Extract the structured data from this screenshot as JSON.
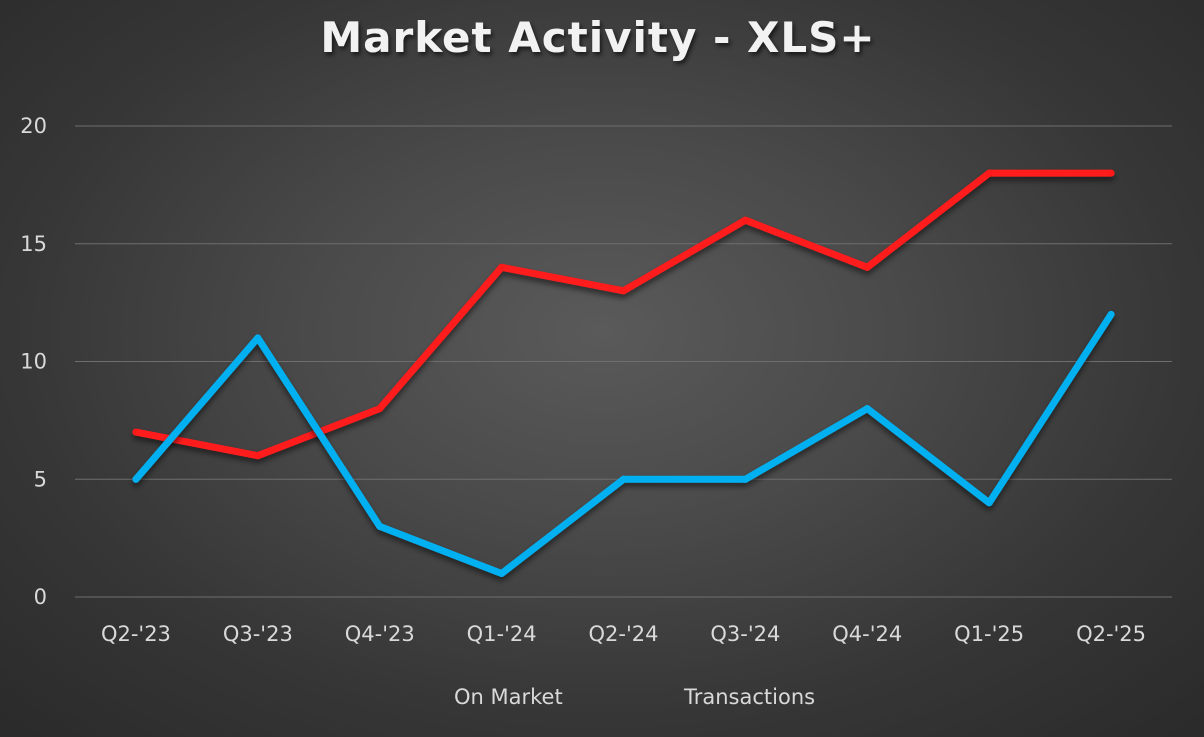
{
  "chart_data": {
    "type": "line",
    "title": "Market Activity - XLS+",
    "categories": [
      "Q2-'23",
      "Q3-'23",
      "Q4-'23",
      "Q1-'24",
      "Q2-'24",
      "Q3-'24",
      "Q4-'24",
      "Q1-'25",
      "Q2-'25"
    ],
    "series": [
      {
        "name": "On Market",
        "color": "#ff1a1a",
        "values": [
          7,
          6,
          8,
          14,
          13,
          16,
          14,
          18,
          18
        ]
      },
      {
        "name": "Transactions",
        "color": "#00b0f0",
        "values": [
          5,
          11,
          3,
          1,
          5,
          5,
          8,
          4,
          12
        ]
      }
    ],
    "ylim": [
      0,
      20
    ],
    "yticks": [
      0,
      5,
      10,
      15,
      20
    ],
    "grid": true,
    "legend_position": "bottom",
    "xlabel": "",
    "ylabel": ""
  }
}
